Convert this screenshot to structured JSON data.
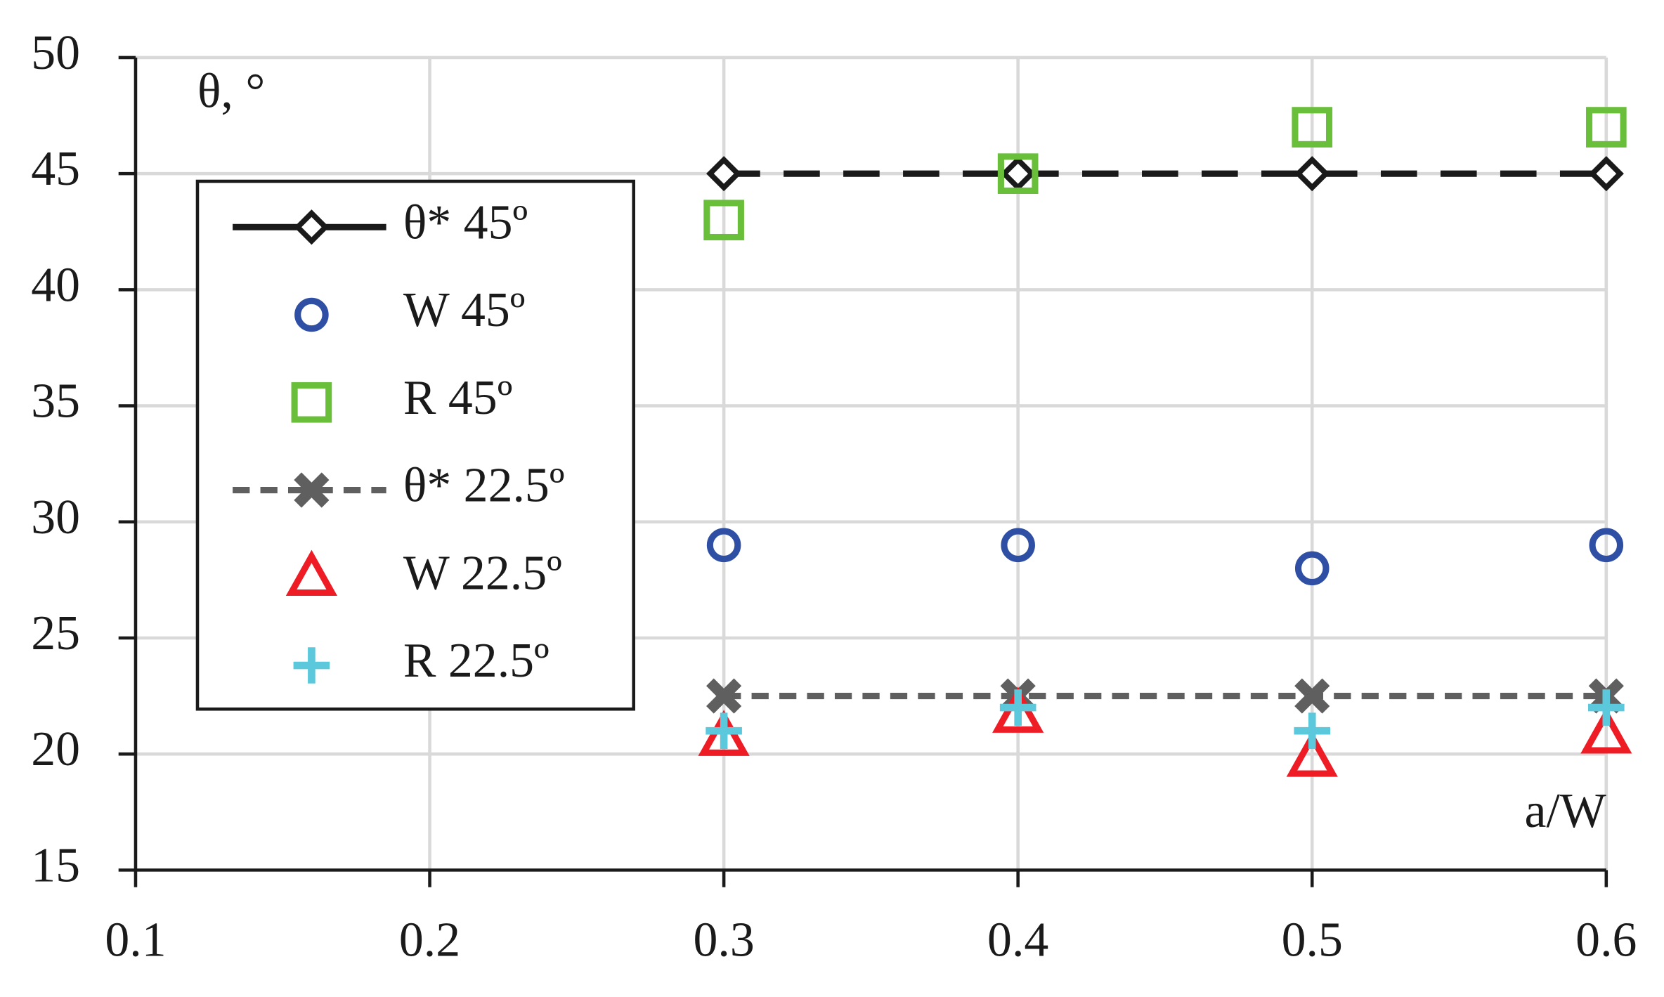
{
  "chart_data": {
    "type": "scatter",
    "y_label": "θ, °",
    "x_label": "a/W",
    "x": [
      0.3,
      0.4,
      0.5,
      0.6
    ],
    "xlim": [
      0.1,
      0.6
    ],
    "xticks": [
      0.1,
      0.2,
      0.3,
      0.4,
      0.5,
      0.6
    ],
    "ylim": [
      15,
      50
    ],
    "yticks": [
      15,
      20,
      25,
      30,
      35,
      40,
      45,
      50
    ],
    "grid": true,
    "legend": "upper left",
    "series": [
      {
        "name": "θ* 45º",
        "color": "#1a1a1a",
        "marker": "diamond",
        "line": "long-dash",
        "values": [
          45,
          45,
          45,
          45
        ]
      },
      {
        "name": "W 45º",
        "color": "#2e4fa3",
        "marker": "circle",
        "line": "none",
        "values": [
          29,
          29,
          28,
          29
        ]
      },
      {
        "name": "R 45º",
        "color": "#6abf3a",
        "marker": "square",
        "line": "none",
        "values": [
          43,
          45,
          47,
          47
        ]
      },
      {
        "name": "θ* 22.5º",
        "color": "#5f5f5f",
        "marker": "x",
        "line": "short-dash",
        "values": [
          22.5,
          22.5,
          22.5,
          22.5
        ]
      },
      {
        "name": "W 22.5º",
        "color": "#ee1c25",
        "marker": "triangle",
        "line": "none",
        "values": [
          20.7,
          21.7,
          19.8,
          20.8
        ]
      },
      {
        "name": "R 22.5º",
        "color": "#5bc8dc",
        "marker": "plus",
        "line": "none",
        "values": [
          21,
          22,
          21,
          22
        ]
      }
    ]
  }
}
